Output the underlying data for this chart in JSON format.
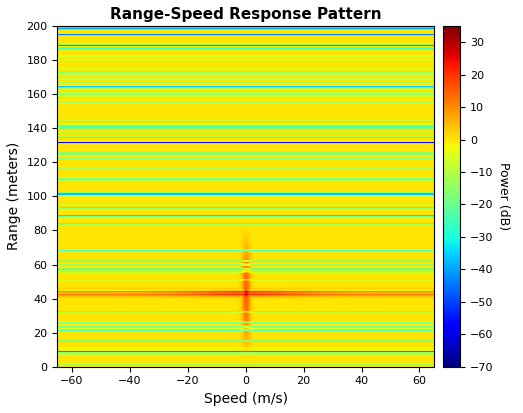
{
  "title": "Range-Speed Response Pattern",
  "xlabel": "Speed (m/s)",
  "ylabel": "Range (meters)",
  "colorbar_label": "Power (dB)",
  "xlim": [
    -65,
    65
  ],
  "ylim": [
    0,
    200
  ],
  "clim": [
    -70,
    35
  ],
  "xticks": [
    -60,
    -40,
    -20,
    0,
    20,
    40,
    60
  ],
  "yticks": [
    0,
    20,
    40,
    60,
    80,
    100,
    120,
    140,
    160,
    180,
    200
  ],
  "colorbar_ticks": [
    -70,
    -60,
    -50,
    -40,
    -30,
    -20,
    -10,
    0,
    10,
    20,
    30
  ],
  "target_range": 43,
  "target_speed": 0,
  "speed_range": [
    -65,
    65
  ],
  "range_range": [
    0,
    200
  ],
  "noise_floor": -65,
  "peak_power": 35,
  "figsize": [
    5.23,
    4.13
  ],
  "dpi": 100
}
